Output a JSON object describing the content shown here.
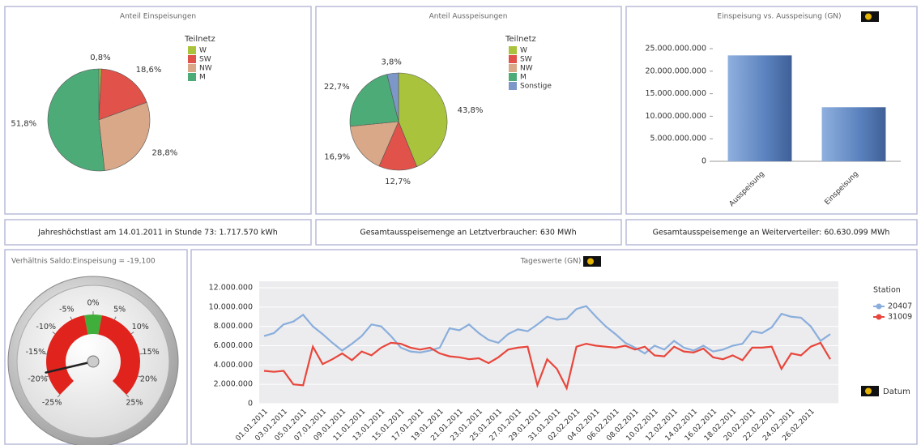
{
  "chart_data": [
    {
      "type": "pie",
      "title": "Anteil Einspeisungen",
      "legend_title": "Teilnetz",
      "categories": [
        "W",
        "SW",
        "NW",
        "M"
      ],
      "values": [
        0.8,
        18.6,
        28.8,
        51.8
      ],
      "value_labels": [
        "0,8%",
        "18,6%",
        "28,8%",
        "51,8%"
      ],
      "colors": [
        "#a9c43c",
        "#e0524a",
        "#d8a888",
        "#4dab78"
      ]
    },
    {
      "type": "pie",
      "title": "Anteil Ausspeisungen",
      "legend_title": "Teilnetz",
      "categories": [
        "W",
        "SW",
        "NW",
        "M",
        "Sonstige"
      ],
      "values": [
        43.8,
        12.7,
        16.9,
        22.7,
        3.8
      ],
      "value_labels": [
        "43,8%",
        "12,7%",
        "16,9%",
        "22,7%",
        "3,8%"
      ],
      "colors": [
        "#a9c43c",
        "#e0524a",
        "#d8a888",
        "#4dab78",
        "#7d97c9"
      ]
    },
    {
      "type": "bar",
      "title": "Einspeisung vs. Ausspeisung (GN)",
      "categories": [
        "Ausspeisung",
        "Einspeisung"
      ],
      "values": [
        23500000000,
        12000000000
      ],
      "color": "#5b82be",
      "ylim": [
        0,
        25000000000
      ],
      "yticks": [
        0,
        {
          "value": 5000000000,
          "label": "5.000.000.000"
        },
        {
          "value": 10000000000,
          "label": "10.000.000.000"
        },
        {
          "value": 15000000000,
          "label": "15.000.000.000"
        },
        {
          "value": 20000000000,
          "label": "20.000.000.000"
        },
        {
          "value": 25000000000,
          "label": "25.000.000.000"
        }
      ]
    },
    {
      "type": "gauge",
      "title": "Verhältnis Saldo:Einspeisung = -19,100",
      "value": -19.1,
      "ylim": [
        -25,
        25
      ],
      "yticks": [
        {
          "value": -25,
          "label": "-25%"
        },
        {
          "value": -20,
          "label": "-20%"
        },
        {
          "value": -15,
          "label": "-15%"
        },
        {
          "value": -10,
          "label": "-10%"
        },
        {
          "value": -5,
          "label": "-5%"
        },
        {
          "value": 0,
          "label": "0%"
        },
        {
          "value": 5,
          "label": "5%"
        },
        {
          "value": 10,
          "label": "10%"
        },
        {
          "value": 15,
          "label": "15%"
        },
        {
          "value": 20,
          "label": "20%"
        },
        {
          "value": 25,
          "label": "25%"
        }
      ],
      "bands": [
        {
          "from": -25,
          "to": -2,
          "color": "#e0231d"
        },
        {
          "from": -2,
          "to": 2,
          "color": "#3fae3a"
        },
        {
          "from": 2,
          "to": 25,
          "color": "#e0231d"
        }
      ]
    },
    {
      "type": "line",
      "title": "Tageswerte (GN)",
      "legend_title": "Station",
      "xlabel": "Datum",
      "categories": [
        "01.01.2011",
        null,
        "03.01.2011",
        null,
        "05.01.2011",
        null,
        "07.01.2011",
        null,
        "09.01.2011",
        null,
        "11.01.2011",
        null,
        "13.01.2011",
        null,
        "15.01.2011",
        null,
        "17.01.2011",
        null,
        "19.01.2011",
        null,
        "21.01.2011",
        null,
        "23.01.2011",
        null,
        "25.01.2011",
        null,
        "27.01.2011",
        null,
        "29.01.2011",
        null,
        "31.01.2011",
        null,
        "02.02.2011",
        null,
        "04.02.2011",
        null,
        "06.02.2011",
        null,
        "08.02.2011",
        null,
        "10.02.2011",
        null,
        "12.02.2011",
        null,
        "14.02.2011",
        null,
        "16.02.2011",
        null,
        "18.02.2011",
        null,
        "20.02.2011",
        null,
        "22.02.2011",
        null,
        "24.02.2011",
        null,
        "26.02.2011",
        null,
        null
      ],
      "series": [
        {
          "name": "20407",
          "color": "#8aaedc",
          "values": [
            7000000,
            7300000,
            8200000,
            8500000,
            9200000,
            8000000,
            7200000,
            6300000,
            5500000,
            6200000,
            7000000,
            8200000,
            8000000,
            7000000,
            5800000,
            5400000,
            5300000,
            5500000,
            5800000,
            7800000,
            7600000,
            8200000,
            7300000,
            6600000,
            6300000,
            7200000,
            7700000,
            7500000,
            8200000,
            9000000,
            8700000,
            8800000,
            9800000,
            10100000,
            9000000,
            8000000,
            7200000,
            6300000,
            5800000,
            5200000,
            6000000,
            5600000,
            6500000,
            5800000,
            5500000,
            6000000,
            5400000,
            5600000,
            6000000,
            6200000,
            7500000,
            7300000,
            7900000,
            9300000,
            9000000,
            8900000,
            8000000,
            6500000,
            7200000
          ]
        },
        {
          "name": "31009",
          "color": "#e8463c",
          "values": [
            3400000,
            3300000,
            3400000,
            2000000,
            1900000,
            5900000,
            4100000,
            4600000,
            5200000,
            4500000,
            5400000,
            5000000,
            5800000,
            6300000,
            6200000,
            5800000,
            5600000,
            5800000,
            5200000,
            4900000,
            4800000,
            4600000,
            4700000,
            4200000,
            4800000,
            5600000,
            5800000,
            5900000,
            1900000,
            4600000,
            3600000,
            1600000,
            5900000,
            6200000,
            6000000,
            5900000,
            5800000,
            6000000,
            5600000,
            5900000,
            5000000,
            4900000,
            5900000,
            5400000,
            5300000,
            5700000,
            4800000,
            4600000,
            5000000,
            4500000,
            5800000,
            5800000,
            5900000,
            3600000,
            5200000,
            5000000,
            5900000,
            6300000,
            4600000
          ]
        }
      ],
      "ylim": [
        0,
        12000000
      ],
      "yticks": [
        0,
        {
          "value": 2000000,
          "label": "2.000.000"
        },
        {
          "value": 4000000,
          "label": "4.000.000"
        },
        {
          "value": 6000000,
          "label": "6.000.000"
        },
        {
          "value": 8000000,
          "label": "8.000.000"
        },
        {
          "value": 10000000,
          "label": "10.000.000"
        },
        {
          "value": 12000000,
          "label": "12.000.000"
        }
      ],
      "grid": true
    }
  ],
  "info_boxes": [
    "Jahreshöchstlast am 14.01.2011 in Stunde 73: 1.717.570 kWh",
    "Gesamtausspeisemenge an Letztverbraucher: 630  MWh",
    "Gesamtausspeisemenge an Weiterverteiler: 60.630.099 MWh"
  ]
}
